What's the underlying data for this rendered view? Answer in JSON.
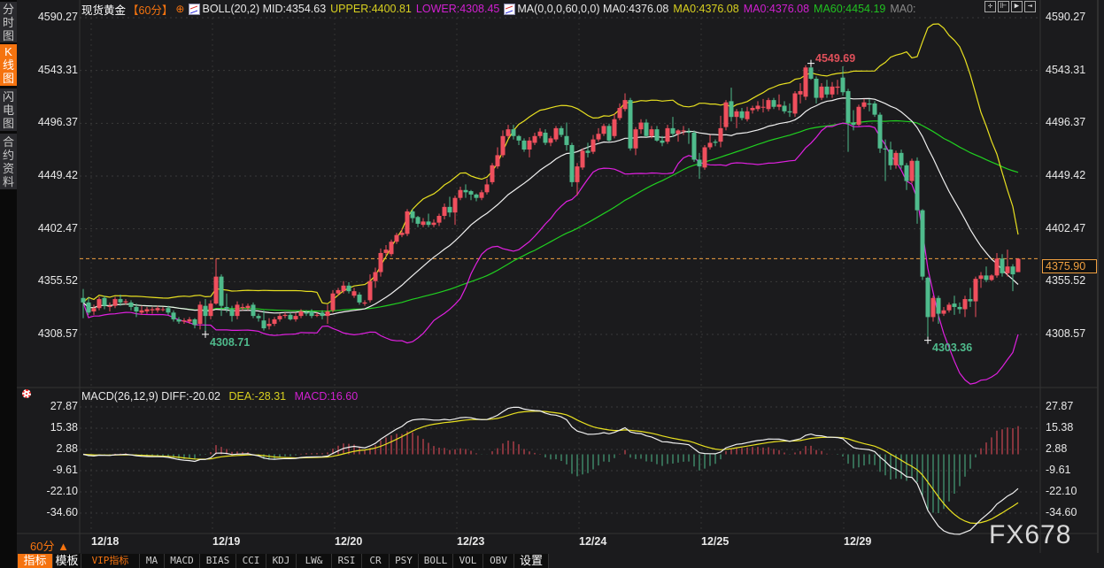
{
  "sidebar": {
    "tabs": [
      {
        "label": "分时图",
        "active": false
      },
      {
        "label": "K线图",
        "active": true
      },
      {
        "label": "闪电图",
        "active": false
      },
      {
        "label": "合约资料",
        "active": false
      }
    ]
  },
  "header": {
    "symbol": "现货黄金",
    "period": "【60分】",
    "settings_icon": "circle-plus-icon",
    "boll": {
      "label": "BOLL(20,2) MID:4354.63",
      "upper": "UPPER:4400.81",
      "lower": "LOWER:4308.45"
    },
    "ma": {
      "label": "MA(0,0,0,60,0,0) MA0:4376.08",
      "ma2": "MA0:4376.08",
      "ma3": "MA0:4376.08",
      "ma60": "MA60:4454.19",
      "ma5": "MA0:"
    }
  },
  "tool_icons": [
    "crosshair-icon",
    "zoom-range-icon",
    "play-icon",
    "jump-end-icon"
  ],
  "colors": {
    "up": "#ef4f5d",
    "down": "#4fbb8c",
    "mid": "#f0f0f0",
    "upper": "#e8e020",
    "lower": "#e020e0",
    "ma60": "#20d020",
    "diff": "#f0f0f0",
    "dea": "#e8e020",
    "accent": "#f5730f",
    "current": "#f0a040"
  },
  "current_price": "4375.90",
  "extremes": {
    "high": "4549.69",
    "low1": "4308.71",
    "low2": "4303.36"
  },
  "chart_data": [
    {
      "type": "candlestick",
      "y_ticks": [
        "4590.27",
        "4543.31",
        "4496.37",
        "4449.42",
        "4402.47",
        "4355.52",
        "4308.57"
      ],
      "ylim": [
        4308.57,
        4590.27
      ],
      "x_ticks": [
        "12/18",
        "12/19",
        "12/20",
        "12/23",
        "12/24",
        "12/25",
        "12/29"
      ],
      "indicators": [
        "BOLL(20,2)",
        "MA60"
      ],
      "ohlc": [
        [
          4341,
          4349,
          4323,
          4337
        ],
        [
          4337,
          4342,
          4326,
          4328
        ],
        [
          4329,
          4335,
          4326,
          4332
        ],
        [
          4332,
          4342,
          4330,
          4340
        ],
        [
          4341,
          4343,
          4331,
          4334
        ],
        [
          4333,
          4337,
          4329,
          4334
        ],
        [
          4334,
          4342,
          4332,
          4340
        ],
        [
          4340,
          4344,
          4334,
          4337
        ],
        [
          4337,
          4340,
          4335,
          4338
        ],
        [
          4337,
          4339,
          4330,
          4333
        ],
        [
          4333,
          4336,
          4324,
          4329
        ],
        [
          4328,
          4334,
          4326,
          4330
        ],
        [
          4329,
          4333,
          4327,
          4331
        ],
        [
          4330,
          4333,
          4327,
          4331
        ],
        [
          4330,
          4334,
          4328,
          4332
        ],
        [
          4331,
          4333,
          4329,
          4331
        ],
        [
          4332,
          4334,
          4326,
          4328
        ],
        [
          4328,
          4330,
          4320,
          4322
        ],
        [
          4322,
          4324,
          4318,
          4320
        ],
        [
          4320,
          4323,
          4318,
          4321
        ],
        [
          4320,
          4324,
          4318,
          4322
        ],
        [
          4322,
          4323,
          4314,
          4317
        ],
        [
          4318,
          4338,
          4313,
          4335
        ],
        [
          4334,
          4340,
          4308.71,
          4325
        ],
        [
          4325,
          4339,
          4322,
          4336
        ],
        [
          4336,
          4376,
          4335,
          4360
        ],
        [
          4360,
          4362,
          4325,
          4334
        ],
        [
          4333,
          4345,
          4328,
          4331
        ],
        [
          4331,
          4334,
          4320,
          4325
        ],
        [
          4325,
          4338,
          4322,
          4335
        ],
        [
          4332,
          4336,
          4330,
          4333
        ],
        [
          4332,
          4336,
          4330,
          4334
        ],
        [
          4335,
          4337,
          4323,
          4325
        ],
        [
          4325,
          4327,
          4320,
          4323
        ],
        [
          4321,
          4330,
          4312,
          4314
        ],
        [
          4316,
          4323,
          4313,
          4318
        ],
        [
          4318,
          4324,
          4316,
          4322
        ],
        [
          4322,
          4327,
          4320,
          4325
        ],
        [
          4325,
          4328,
          4323,
          4326
        ],
        [
          4326,
          4328,
          4321,
          4322
        ],
        [
          4322,
          4328,
          4320,
          4325
        ],
        [
          4325,
          4331,
          4323,
          4329
        ],
        [
          4328,
          4330,
          4325,
          4327
        ],
        [
          4329,
          4331,
          4323,
          4325
        ],
        [
          4326,
          4328,
          4324,
          4326
        ],
        [
          4328,
          4330,
          4322,
          4325
        ],
        [
          4325,
          4335,
          4318,
          4329
        ],
        [
          4330,
          4348,
          4328,
          4345
        ],
        [
          4345,
          4350,
          4343,
          4348
        ],
        [
          4347,
          4356,
          4345,
          4352
        ],
        [
          4352,
          4355,
          4345,
          4347
        ],
        [
          4343,
          4350,
          4341,
          4347
        ],
        [
          4344,
          4346,
          4335,
          4337
        ],
        [
          4336,
          4339,
          4334,
          4337
        ],
        [
          4339,
          4362,
          4337,
          4356
        ],
        [
          4356,
          4368,
          4350,
          4364
        ],
        [
          4364,
          4385,
          4360,
          4381
        ],
        [
          4381,
          4388,
          4378,
          4384
        ],
        [
          4380,
          4393,
          4378,
          4391
        ],
        [
          4391,
          4399,
          4389,
          4397
        ],
        [
          4397,
          4403,
          4395,
          4399
        ],
        [
          4398,
          4420,
          4396,
          4418
        ],
        [
          4418,
          4420,
          4408,
          4412
        ],
        [
          4413,
          4414,
          4404,
          4407
        ],
        [
          4406,
          4412,
          4404,
          4409
        ],
        [
          4409,
          4416,
          4404,
          4406
        ],
        [
          4406,
          4411,
          4404,
          4408
        ],
        [
          4408,
          4416,
          4405,
          4414
        ],
        [
          4414,
          4425,
          4411,
          4422
        ],
        [
          4422,
          4431,
          4413,
          4417
        ],
        [
          4417,
          4432,
          4406,
          4430
        ],
        [
          4430,
          4440,
          4428,
          4437
        ],
        [
          4437,
          4442,
          4430,
          4435
        ],
        [
          4436,
          4437,
          4428,
          4433
        ],
        [
          4433,
          4434,
          4427,
          4430
        ],
        [
          4430,
          4437,
          4428,
          4435
        ],
        [
          4435,
          4447,
          4433,
          4442
        ],
        [
          4444,
          4461,
          4442,
          4459
        ],
        [
          4458,
          4475,
          4456,
          4468
        ],
        [
          4468,
          4490,
          4466,
          4485
        ],
        [
          4485,
          4495,
          4483,
          4491
        ],
        [
          4491,
          4495,
          4482,
          4485
        ],
        [
          4485,
          4486,
          4477,
          4481
        ],
        [
          4481,
          4483,
          4471,
          4473
        ],
        [
          4473,
          4484,
          4466,
          4481
        ],
        [
          4479,
          4488,
          4477,
          4485
        ],
        [
          4485,
          4492,
          4483,
          4489
        ],
        [
          4488,
          4491,
          4477,
          4479
        ],
        [
          4479,
          4485,
          4476,
          4483
        ],
        [
          4482,
          4494,
          4480,
          4492
        ],
        [
          4492,
          4494,
          4484,
          4486
        ],
        [
          4485,
          4497,
          4472,
          4477
        ],
        [
          4477,
          4479,
          4440,
          4444
        ],
        [
          4444,
          4461,
          4432,
          4458
        ],
        [
          4457,
          4474,
          4455,
          4472
        ],
        [
          4472,
          4479,
          4466,
          4470
        ],
        [
          4471,
          4486,
          4469,
          4482
        ],
        [
          4482,
          4492,
          4480,
          4487
        ],
        [
          4487,
          4496,
          4485,
          4494
        ],
        [
          4494,
          4496,
          4480,
          4481
        ],
        [
          4485,
          4505,
          4483,
          4500
        ],
        [
          4501,
          4514,
          4499,
          4510
        ],
        [
          4509,
          4523,
          4507,
          4517
        ],
        [
          4517,
          4519,
          4472,
          4474
        ],
        [
          4474,
          4493,
          4468,
          4491
        ],
        [
          4491,
          4500,
          4487,
          4497
        ],
        [
          4497,
          4500,
          4484,
          4485
        ],
        [
          4485,
          4494,
          4483,
          4491
        ],
        [
          4491,
          4494,
          4480,
          4481
        ],
        [
          4481,
          4485,
          4476,
          4479
        ],
        [
          4480,
          4495,
          4478,
          4492
        ],
        [
          4492,
          4502,
          4484,
          4487
        ],
        [
          4487,
          4491,
          4480,
          4490
        ],
        [
          4490,
          4494,
          4486,
          4490
        ],
        [
          4489,
          4492,
          4478,
          4488
        ],
        [
          4488,
          4490,
          4462,
          4464
        ],
        [
          4464,
          4470,
          4447,
          4458
        ],
        [
          4457,
          4477,
          4455,
          4475
        ],
        [
          4475,
          4486,
          4473,
          4479
        ],
        [
          4480,
          4482,
          4476,
          4479
        ],
        [
          4480,
          4503,
          4475,
          4492
        ],
        [
          4493,
          4517,
          4490,
          4515
        ],
        [
          4516,
          4528,
          4498,
          4502
        ],
        [
          4502,
          4509,
          4492,
          4507
        ],
        [
          4507,
          4510,
          4499,
          4501
        ],
        [
          4500,
          4511,
          4498,
          4507
        ],
        [
          4508,
          4512,
          4505,
          4510
        ],
        [
          4509,
          4516,
          4507,
          4512
        ],
        [
          4511,
          4518,
          4506,
          4511
        ],
        [
          4509,
          4519,
          4507,
          4517
        ],
        [
          4517,
          4519,
          4509,
          4511
        ],
        [
          4511,
          4522,
          4508,
          4513
        ],
        [
          4512,
          4516,
          4505,
          4507
        ],
        [
          4507,
          4514,
          4502,
          4506
        ],
        [
          4505,
          4525,
          4502,
          4523
        ],
        [
          4522,
          4532,
          4514,
          4525
        ],
        [
          4520,
          4548,
          4517,
          4546
        ],
        [
          4546,
          4549.69,
          4535,
          4536
        ],
        [
          4536,
          4538,
          4514,
          4519
        ],
        [
          4519,
          4532,
          4517,
          4529
        ],
        [
          4529,
          4535,
          4519,
          4522
        ],
        [
          4522,
          4533,
          4519,
          4529
        ],
        [
          4528,
          4535,
          4522,
          4529
        ],
        [
          4537,
          4547,
          4521,
          4524
        ],
        [
          4525,
          4527,
          4471,
          4497
        ],
        [
          4497,
          4508,
          4490,
          4495
        ],
        [
          4495,
          4513,
          4494,
          4511
        ],
        [
          4511,
          4518,
          4509,
          4515
        ],
        [
          4514,
          4518,
          4507,
          4513
        ],
        [
          4514,
          4516,
          4502,
          4504
        ],
        [
          4504,
          4506,
          4470,
          4474
        ],
        [
          4474,
          4482,
          4445,
          4473
        ],
        [
          4473,
          4480,
          4455,
          4459
        ],
        [
          4459,
          4472,
          4456,
          4470
        ],
        [
          4470,
          4473,
          4456,
          4459
        ],
        [
          4459,
          4461,
          4437,
          4445
        ],
        [
          4445,
          4465,
          4443,
          4463
        ],
        [
          4463,
          4466,
          4407,
          4419
        ],
        [
          4419,
          4420,
          4357,
          4360
        ],
        [
          4359,
          4360,
          4303.36,
          4324
        ],
        [
          4324,
          4343,
          4320,
          4341
        ],
        [
          4341,
          4343,
          4318,
          4327
        ],
        [
          4327,
          4333,
          4325,
          4330
        ],
        [
          4330,
          4337,
          4328,
          4335
        ],
        [
          4336,
          4343,
          4326,
          4333
        ],
        [
          4333,
          4337,
          4327,
          4331
        ],
        [
          4331,
          4343,
          4324,
          4340
        ],
        [
          4340,
          4350,
          4333,
          4338
        ],
        [
          4338,
          4360,
          4324,
          4358
        ],
        [
          4358,
          4364,
          4350,
          4361
        ],
        [
          4361,
          4369,
          4355,
          4357
        ],
        [
          4357,
          4362,
          4356,
          4361
        ],
        [
          4361,
          4381,
          4359,
          4376
        ],
        [
          4376,
          4380,
          4360,
          4363
        ],
        [
          4363,
          4384,
          4360,
          4369
        ],
        [
          4369,
          4371,
          4347,
          4362
        ],
        [
          4364,
          4376,
          4364,
          4375.9
        ]
      ]
    },
    {
      "type": "macd",
      "y_ticks": [
        "27.87",
        "15.38",
        "2.88",
        "-9.61",
        "-22.10",
        "-34.60"
      ],
      "ylim": [
        -34.6,
        27.87
      ],
      "params": [
        26,
        12,
        9
      ]
    }
  ],
  "macd_header": {
    "label": "MACD(26,12,9) DIFF:-20.02",
    "dea": "DEA:-28.31",
    "macd": "MACD:16.60"
  },
  "footer": {
    "period": "60分 ▲",
    "toolbar": [
      "指标",
      "模板",
      "VIP指标",
      "MA",
      "MACD",
      "BIAS",
      "CCI",
      "KDJ",
      "LW&",
      "RSI",
      "CR",
      "PSY",
      "BOLL",
      "VOL",
      "OBV",
      "设置"
    ]
  },
  "watermark": "FX678"
}
